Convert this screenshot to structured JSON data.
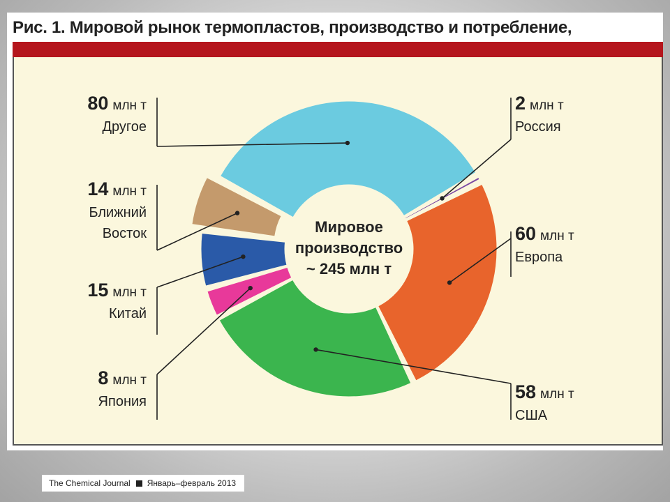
{
  "figure": {
    "title": "Рис. 1. Мировой рынок термопластов, производство и потребление,"
  },
  "colors": {
    "header_bar": "#b5161d",
    "background": "#fbf7dd"
  },
  "chart_data": {
    "type": "pie",
    "subtype": "donut",
    "unit": "млн т",
    "center_label": [
      "Мировое",
      "производство",
      "~ 245 млн т"
    ],
    "slices": [
      {
        "label": "Европа",
        "value": 60,
        "color": "#e8642c"
      },
      {
        "label": "США",
        "value": 58,
        "color": "#3bb54e"
      },
      {
        "label": "Япония",
        "value": 8,
        "color": "#e8399a"
      },
      {
        "label": "Китай",
        "value": 15,
        "color": "#2a5aa8"
      },
      {
        "label": "Ближний Восток",
        "value": 14,
        "color": "#c49a6c"
      },
      {
        "label": "Другое",
        "value": 80,
        "color": "#6bcbe0"
      },
      {
        "label": "Россия",
        "value": 2,
        "color": "#7b4aa3"
      }
    ]
  },
  "labels": [
    {
      "value": "80",
      "unit": "млн т",
      "name_lines": [
        "Другое"
      ]
    },
    {
      "value": "14",
      "unit": "млн т",
      "name_lines": [
        "Ближний",
        "Восток"
      ]
    },
    {
      "value": "15",
      "unit": "млн т",
      "name_lines": [
        "Китай"
      ]
    },
    {
      "value": "8",
      "unit": "млн т",
      "name_lines": [
        "Япония"
      ]
    },
    {
      "value": "2",
      "unit": "млн т",
      "name_lines": [
        "Россия"
      ]
    },
    {
      "value": "60",
      "unit": "млн т",
      "name_lines": [
        "Европа"
      ]
    },
    {
      "value": "58",
      "unit": "млн т",
      "name_lines": [
        "США"
      ]
    }
  ],
  "footer": {
    "journal": "The Chemical Journal",
    "issue": "Январь–февраль 2013"
  }
}
